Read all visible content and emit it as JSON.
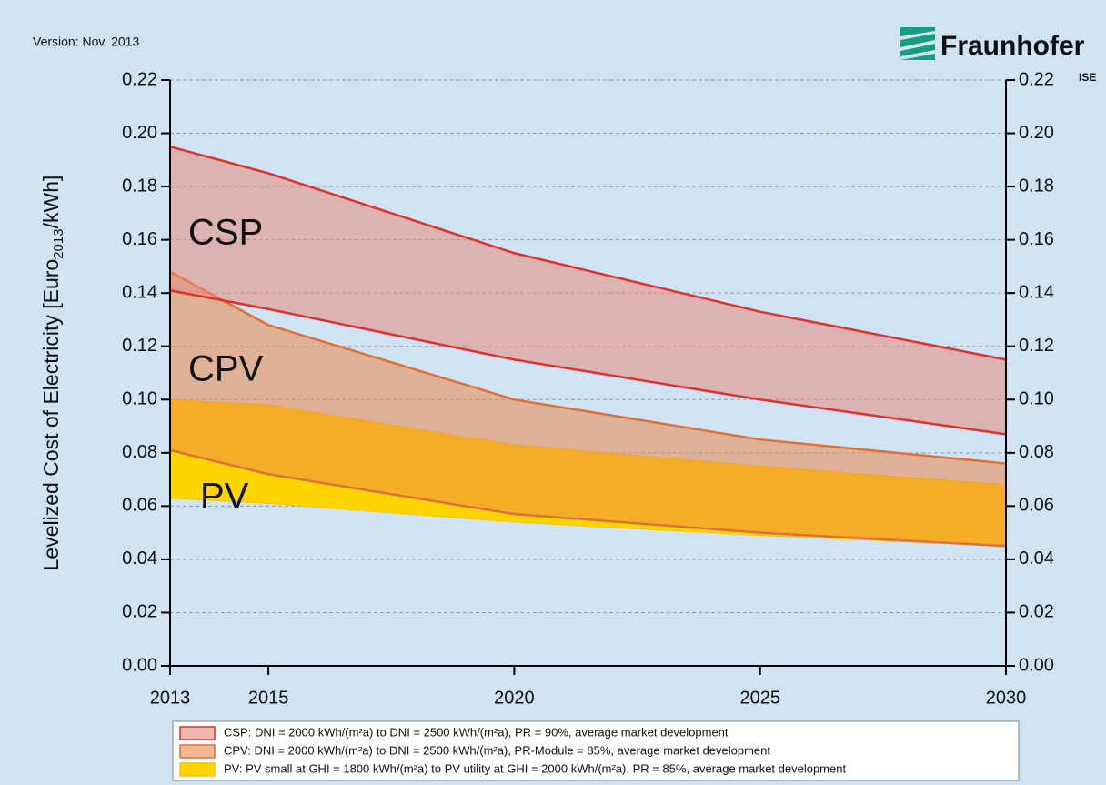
{
  "chart_data": {
    "type": "band",
    "version": "Version: Nov. 2013",
    "brand": "Fraunhofer",
    "brand_sub": "ISE",
    "y_label": [
      "Levelized Cost of Electricity [Euro",
      "2013",
      "/kWh]"
    ],
    "x": [
      2013,
      2015,
      2020,
      2025,
      2030
    ],
    "xlim": [
      2013,
      2030
    ],
    "xticks": [
      2013,
      2015,
      2020,
      2025,
      2030
    ],
    "ylim": [
      0,
      0.22
    ],
    "yticks": [
      {
        "value": 0,
        "label": "0.00"
      },
      {
        "value": 0.02,
        "label": "0.02"
      },
      {
        "value": 0.04,
        "label": "0.04"
      },
      {
        "value": 0.06,
        "label": "0.06"
      },
      {
        "value": 0.08,
        "label": "0.08"
      },
      {
        "value": 0.1,
        "label": "0.10"
      },
      {
        "value": 0.12,
        "label": "0.12"
      },
      {
        "value": 0.14,
        "label": "0.14"
      },
      {
        "value": 0.16,
        "label": "0.16"
      },
      {
        "value": 0.18,
        "label": "0.18"
      },
      {
        "value": 0.2,
        "label": "0.20"
      },
      {
        "value": 0.22,
        "label": "0.22"
      }
    ],
    "y2lim": [
      0,
      0.22
    ],
    "y2ticks": [
      {
        "value": 0,
        "label": "0.00"
      },
      {
        "value": 0.02,
        "label": "0.02"
      },
      {
        "value": 0.04,
        "label": "0.04"
      },
      {
        "value": 0.06,
        "label": "0.06"
      },
      {
        "value": 0.08,
        "label": "0.08"
      },
      {
        "value": 0.1,
        "label": "0.10"
      },
      {
        "value": 0.12,
        "label": "0.12"
      },
      {
        "value": 0.14,
        "label": "0.14"
      },
      {
        "value": 0.16,
        "label": "0.16"
      },
      {
        "value": 0.18,
        "label": "0.18"
      },
      {
        "value": 0.2,
        "label": "0.20"
      },
      {
        "value": 0.22,
        "label": "0.22"
      }
    ],
    "grid": true,
    "series": [
      {
        "name": "PV: PV small at GHI = 1800 kWh/(m²a) to PV utility at GHI = 2000 kWh/(m²a), PR = 85%, average market development",
        "label": "PV",
        "color": "#f5c400",
        "fill": "#ffd500",
        "upper": [
          0.1,
          0.098,
          0.083,
          0.075,
          0.068
        ],
        "lower": [
          0.063,
          0.061,
          0.054,
          0.049,
          0.045
        ]
      },
      {
        "name": "CPV: DNI = 2000 kWh/(m²a) to DNI = 2500 kWh/(m²a), PR-Module = 85%, average market development",
        "label": "CPV",
        "color": "#e0703a",
        "fill": "#eb8a4a",
        "upper": [
          0.148,
          0.128,
          0.1,
          0.085,
          0.076
        ],
        "lower": [
          0.081,
          0.072,
          0.057,
          0.05,
          0.045
        ]
      },
      {
        "name": "CSP: DNI = 2000 kWh/(m²a) to DNI = 2500 kWh/(m²a), PR = 90%, average market development",
        "label": "CSP",
        "color": "#e0312e",
        "fill": "#e88a7e",
        "upper": [
          0.195,
          0.185,
          0.155,
          0.133,
          0.115
        ],
        "lower": [
          0.141,
          0.134,
          0.115,
          0.1,
          0.087
        ]
      }
    ]
  }
}
